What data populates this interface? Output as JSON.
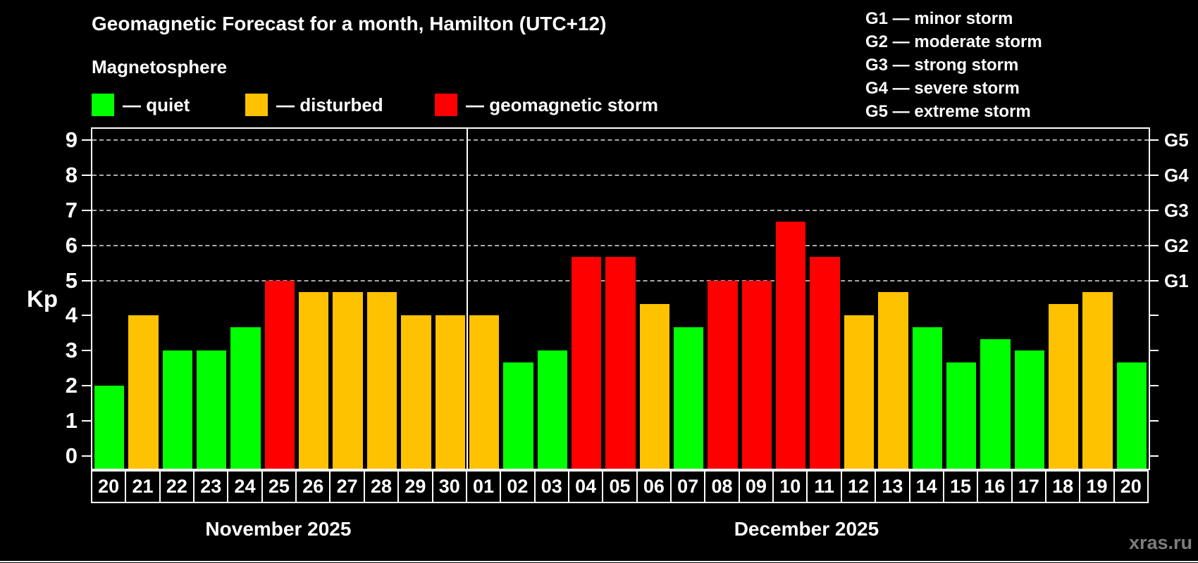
{
  "header": {
    "title": "Geomagnetic Forecast for a month, Hamilton (UTC+12)",
    "subtitle": "Magnetosphere"
  },
  "colors": {
    "quiet": "#00ff00",
    "disturbed": "#ffc200",
    "storm": "#ff0000",
    "background": "#000000",
    "axis": "#ffffff",
    "gridline": "#aaaaaa",
    "watermark": "#7d7d7d"
  },
  "legend": {
    "items": [
      {
        "status": "quiet",
        "label": "— quiet"
      },
      {
        "status": "disturbed",
        "label": "— disturbed"
      },
      {
        "status": "storm",
        "label": "— geomagnetic storm"
      }
    ]
  },
  "storm_scale": [
    "G1 — minor storm",
    "G2 — moderate storm",
    "G3 — strong storm",
    "G4 — severe storm",
    "G5 — extreme storm"
  ],
  "axis": {
    "kp_label": "Kp",
    "kp_ticks": [
      0,
      1,
      2,
      3,
      4,
      5,
      6,
      7,
      8,
      9
    ],
    "g_levels": [
      {
        "label": "G1",
        "kp": 5
      },
      {
        "label": "G2",
        "kp": 6
      },
      {
        "label": "G3",
        "kp": 7
      },
      {
        "label": "G4",
        "kp": 8
      },
      {
        "label": "G5",
        "kp": 9
      }
    ]
  },
  "chart_data": {
    "type": "bar",
    "title": "Geomagnetic Forecast for a month, Hamilton (UTC+12)",
    "ylabel": "Kp",
    "ylim": [
      0,
      9
    ],
    "grid": "dashed horizontal lines at Kp 5,6,7,8,9",
    "legend_position": "top-left",
    "categories": [
      "20",
      "21",
      "22",
      "23",
      "24",
      "25",
      "26",
      "27",
      "28",
      "29",
      "30",
      "01",
      "02",
      "03",
      "04",
      "05",
      "06",
      "07",
      "08",
      "09",
      "10",
      "11",
      "12",
      "13",
      "14",
      "15",
      "16",
      "17",
      "18",
      "19",
      "20"
    ],
    "values": [
      2,
      4,
      3,
      3,
      3.67,
      5,
      4.67,
      4.67,
      4.67,
      4,
      4,
      4,
      2.67,
      3,
      5.67,
      5.67,
      4.33,
      3.67,
      5,
      5,
      6.67,
      5.67,
      4,
      4.67,
      3.67,
      2.67,
      3.33,
      3,
      4.33,
      4.67,
      2.67
    ],
    "statuses": [
      "quiet",
      "disturbed",
      "quiet",
      "quiet",
      "quiet",
      "storm",
      "disturbed",
      "disturbed",
      "disturbed",
      "disturbed",
      "disturbed",
      "disturbed",
      "quiet",
      "quiet",
      "storm",
      "storm",
      "disturbed",
      "quiet",
      "storm",
      "storm",
      "storm",
      "storm",
      "disturbed",
      "disturbed",
      "quiet",
      "quiet",
      "quiet",
      "quiet",
      "disturbed",
      "disturbed",
      "quiet"
    ],
    "months": [
      {
        "label": "November 2025",
        "days": 11
      },
      {
        "label": "December 2025",
        "days": 20
      }
    ]
  },
  "watermark": "xras.ru"
}
